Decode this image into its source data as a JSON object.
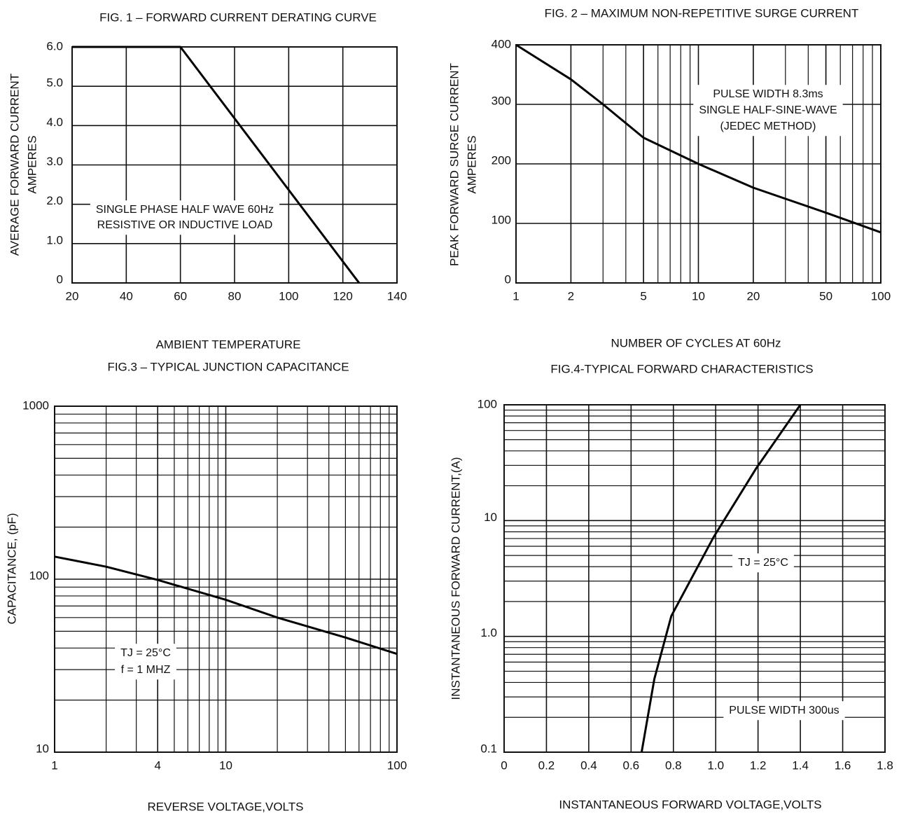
{
  "chart_data": [
    {
      "type": "line",
      "title": "FIG. 1 – FORWARD CURRENT DERATING CURVE",
      "xlabel": "AMBIENT TEMPERATURE",
      "ylabel": [
        "AVERAGE FORWARD CURRENT",
        "AMPERES"
      ],
      "x": [
        20,
        60,
        126
      ],
      "values": [
        6,
        6,
        0
      ],
      "color": "#000000",
      "xlim": [
        20,
        140
      ],
      "xticks": [
        20,
        40,
        60,
        80,
        100,
        120,
        140
      ],
      "ylim": [
        0,
        6
      ],
      "yticks": [
        0,
        {
          "value": 1,
          "label": "1.0"
        },
        {
          "value": 2,
          "label": "2.0"
        },
        {
          "value": 3,
          "label": "3.0"
        },
        {
          "value": 4,
          "label": "4.0"
        },
        {
          "value": 5,
          "label": "5.0"
        },
        {
          "value": 6,
          "label": "6.0"
        }
      ],
      "grid": true,
      "minor_grid": [],
      "annotations": [
        [
          "SINGLE PHASE HALF WAVE 60Hz",
          "RESISTIVE OR INDUCTIVE LOAD"
        ]
      ]
    },
    {
      "type": "line",
      "title": "FIG. 2 – MAXIMUM NON-REPETITIVE SURGE CURRENT",
      "xlabel": "NUMBER OF CYCLES AT 60Hz",
      "ylabel": [
        "PEAK FORWARD SURGE CURRENT",
        "AMPERES"
      ],
      "x": [
        1,
        2,
        3,
        5,
        10,
        20,
        50,
        100
      ],
      "values": [
        400,
        342,
        300,
        244,
        200,
        160,
        118,
        85
      ],
      "color": "#000000",
      "xscale": "log",
      "xlim": [
        1,
        100
      ],
      "xticks": [
        1,
        2,
        5,
        10,
        20,
        50,
        100
      ],
      "ylim": [
        0,
        400
      ],
      "yticks": [
        0,
        100,
        200,
        300,
        400
      ],
      "grid": true,
      "minor_grid": [
        "x"
      ],
      "annotations": [
        [
          "PULSE WIDTH 8.3ms",
          "SINGLE HALF-SINE-WAVE",
          "(JEDEC METHOD)"
        ]
      ]
    },
    {
      "type": "line",
      "title": "FIG.3 – TYPICAL JUNCTION CAPACITANCE",
      "xlabel": "REVERSE VOLTAGE,VOLTS",
      "ylabel": [
        "CAPACITANCE, (pF)"
      ],
      "x": [
        1,
        2,
        4,
        10,
        20,
        50,
        100
      ],
      "values": [
        135,
        118,
        99,
        76,
        60,
        46,
        37
      ],
      "color": "#000000",
      "xscale": "log",
      "xlim": [
        1,
        100
      ],
      "xticks": [
        1,
        4,
        10,
        100
      ],
      "yscale": "log",
      "ylim": [
        10,
        1000
      ],
      "yticks": [
        10,
        100,
        1000
      ],
      "grid": true,
      "minor_grid": [
        "x",
        "y"
      ],
      "annotations": [
        [
          "TJ = 25°C",
          "f = 1 MHZ"
        ]
      ]
    },
    {
      "type": "line",
      "title": "FIG.4-TYPICAL FORWARD CHARACTERISTICS",
      "xlabel": "INSTANTANEOUS FORWARD VOLTAGE,VOLTS",
      "ylabel": [
        "INSTANTANEOUS FORWARD CURRENT,(A)"
      ],
      "x": [
        0.65,
        0.71,
        0.79,
        0.99,
        1.19,
        1.4
      ],
      "values": [
        0.1,
        0.43,
        1.5,
        7.2,
        28,
        100
      ],
      "color": "#000000",
      "xlim": [
        0,
        1.8
      ],
      "xticks": [
        0,
        0.2,
        0.4,
        0.6,
        0.8,
        {
          "value": 1,
          "label": "1.0"
        },
        1.2,
        1.4,
        1.6,
        1.8
      ],
      "yscale": "log",
      "ylim": [
        0.1,
        100
      ],
      "yticks": [
        0.1,
        {
          "value": 1,
          "label": "1.0"
        },
        10,
        100
      ],
      "grid": true,
      "minor_grid": [
        "y"
      ],
      "annotations": [
        [
          "TJ = 25°C"
        ],
        [
          "PULSE WIDTH 300us"
        ]
      ]
    }
  ]
}
